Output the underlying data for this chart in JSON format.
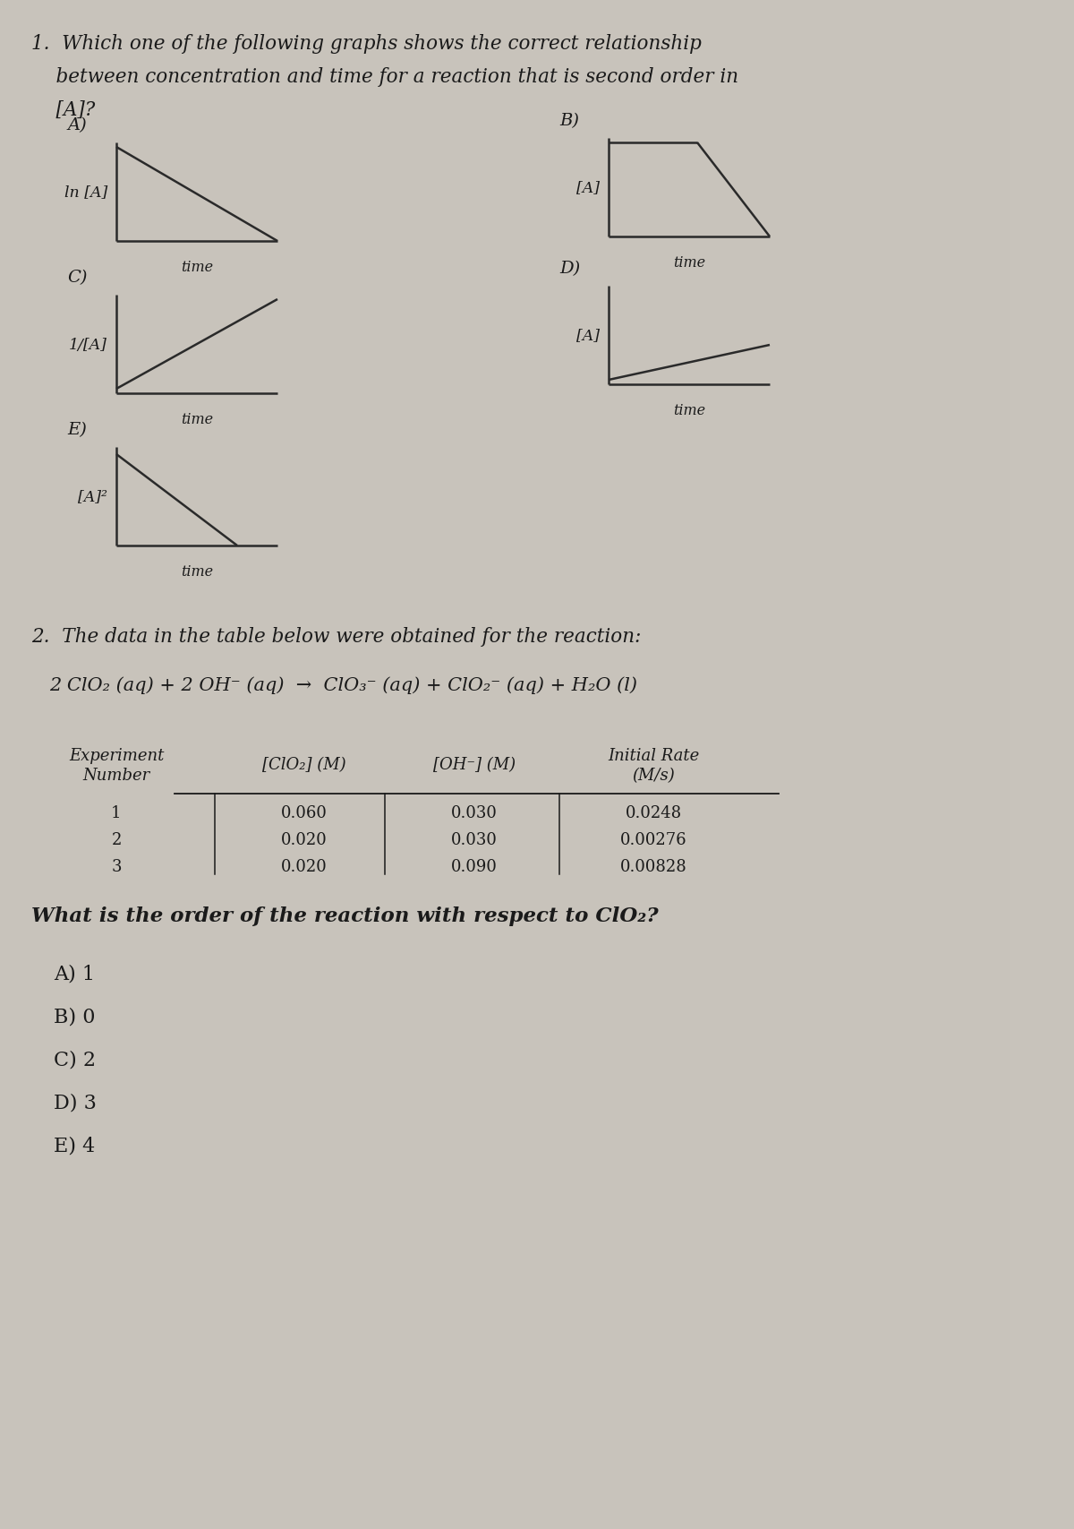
{
  "bg_color": "#c8c3bb",
  "text_color": "#1a1a1a",
  "line_color": "#2a2a2a",
  "graphA_ylabel": "ln [A]",
  "graphB_ylabel": "[A]",
  "graphC_ylabel": "1/[A]",
  "graphD_ylabel": "[A]",
  "graphE_ylabel": "[A]²",
  "xlabel": "time",
  "q1_line1": "1.  Which one of the following graphs shows the correct relationship",
  "q1_line2": "    between concentration and time for a reaction that is second order in",
  "q1_line3": "    [A]?",
  "q2_title": "2.  The data in the table below were obtained for the reaction:",
  "reaction_left": "2 ClO",
  "reaction_right": " (aq) + 2 OH",
  "table_col0": [
    "Experiment",
    "Number"
  ],
  "table_col1": [
    "[ClO",
    "] (M)"
  ],
  "table_col2": [
    "[OH",
    "] (M)"
  ],
  "table_col3": [
    "Initial Rate",
    "(M/s)"
  ],
  "table_rows": [
    [
      "1",
      "0.060",
      "0.030",
      "0.0248"
    ],
    [
      "2",
      "0.020",
      "0.030",
      "0.00276"
    ],
    [
      "3",
      "0.020",
      "0.090",
      "0.00828"
    ]
  ],
  "q2_question": "What is the order of the reaction with respect to ClO",
  "q2_answers": [
    "A) 1",
    "B) 0",
    "C) 2",
    "D) 3",
    "E) 4"
  ]
}
